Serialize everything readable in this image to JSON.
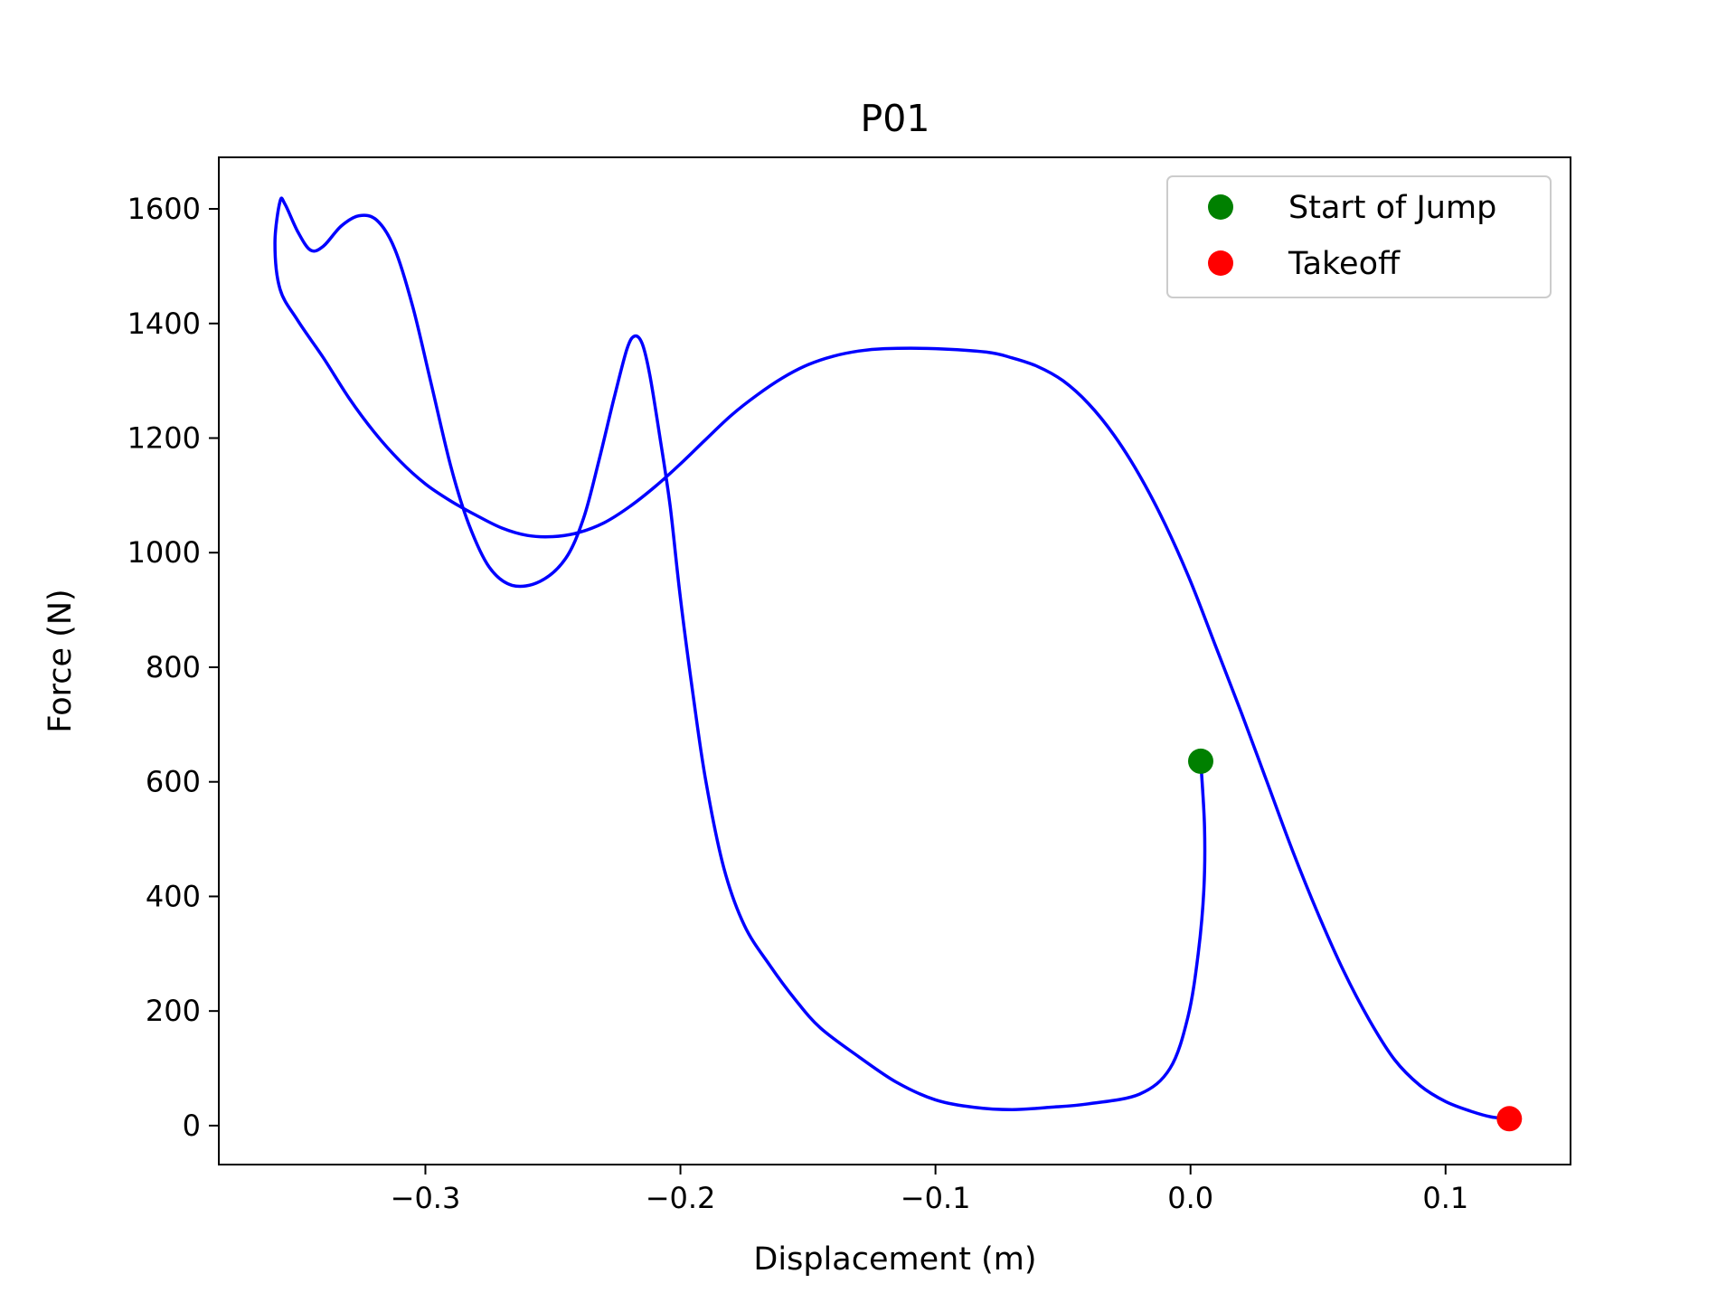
{
  "chart_data": {
    "type": "line",
    "title": "P01",
    "xlabel": "Displacement (m)",
    "ylabel": "Force (N)",
    "xlim": [
      -0.381,
      0.149
    ],
    "ylim": [
      -68,
      1690
    ],
    "x_ticks": [
      {
        "value": -0.3,
        "label": "−0.3"
      },
      {
        "value": -0.2,
        "label": "−0.2"
      },
      {
        "value": -0.1,
        "label": "−0.1"
      },
      {
        "value": 0.0,
        "label": "0.0"
      },
      {
        "value": 0.1,
        "label": "0.1"
      }
    ],
    "y_ticks": [
      {
        "value": 0,
        "label": "0"
      },
      {
        "value": 200,
        "label": "200"
      },
      {
        "value": 400,
        "label": "400"
      },
      {
        "value": 600,
        "label": "600"
      },
      {
        "value": 800,
        "label": "800"
      },
      {
        "value": 1000,
        "label": "1000"
      },
      {
        "value": 1200,
        "label": "1200"
      },
      {
        "value": 1400,
        "label": "1400"
      },
      {
        "value": 1600,
        "label": "1600"
      }
    ],
    "grid": false,
    "legend_position": "top-right",
    "series": [
      {
        "color": "#0000ff",
        "points": [
          [
            0.004,
            636
          ],
          [
            0.0055,
            520
          ],
          [
            0.0052,
            410
          ],
          [
            0.003,
            300
          ],
          [
            -0.001,
            190
          ],
          [
            -0.008,
            100
          ],
          [
            -0.02,
            55
          ],
          [
            -0.04,
            38
          ],
          [
            -0.055,
            32
          ],
          [
            -0.07,
            28
          ],
          [
            -0.085,
            32
          ],
          [
            -0.1,
            45
          ],
          [
            -0.115,
            75
          ],
          [
            -0.13,
            120
          ],
          [
            -0.145,
            170
          ],
          [
            -0.155,
            220
          ],
          [
            -0.165,
            280
          ],
          [
            -0.175,
            350
          ],
          [
            -0.183,
            450
          ],
          [
            -0.19,
            600
          ],
          [
            -0.195,
            750
          ],
          [
            -0.2,
            920
          ],
          [
            -0.204,
            1080
          ],
          [
            -0.208,
            1200
          ],
          [
            -0.212,
            1310
          ],
          [
            -0.215,
            1365
          ],
          [
            -0.218,
            1378
          ],
          [
            -0.221,
            1355
          ],
          [
            -0.226,
            1270
          ],
          [
            -0.232,
            1160
          ],
          [
            -0.238,
            1060
          ],
          [
            -0.245,
            990
          ],
          [
            -0.255,
            950
          ],
          [
            -0.266,
            943
          ],
          [
            -0.275,
            975
          ],
          [
            -0.283,
            1050
          ],
          [
            -0.29,
            1150
          ],
          [
            -0.298,
            1300
          ],
          [
            -0.305,
            1430
          ],
          [
            -0.312,
            1530
          ],
          [
            -0.319,
            1580
          ],
          [
            -0.326,
            1588
          ],
          [
            -0.333,
            1570
          ],
          [
            -0.34,
            1535
          ],
          [
            -0.345,
            1528
          ],
          [
            -0.35,
            1560
          ],
          [
            -0.355,
            1608
          ],
          [
            -0.357,
            1613
          ],
          [
            -0.359,
            1540
          ],
          [
            -0.357,
            1460
          ],
          [
            -0.35,
            1405
          ],
          [
            -0.34,
            1340
          ],
          [
            -0.33,
            1270
          ],
          [
            -0.32,
            1210
          ],
          [
            -0.31,
            1160
          ],
          [
            -0.3,
            1120
          ],
          [
            -0.29,
            1090
          ],
          [
            -0.28,
            1065
          ],
          [
            -0.27,
            1043
          ],
          [
            -0.26,
            1030
          ],
          [
            -0.25,
            1028
          ],
          [
            -0.24,
            1035
          ],
          [
            -0.23,
            1052
          ],
          [
            -0.22,
            1080
          ],
          [
            -0.21,
            1115
          ],
          [
            -0.2,
            1155
          ],
          [
            -0.19,
            1198
          ],
          [
            -0.18,
            1240
          ],
          [
            -0.17,
            1275
          ],
          [
            -0.16,
            1305
          ],
          [
            -0.15,
            1328
          ],
          [
            -0.14,
            1343
          ],
          [
            -0.13,
            1352
          ],
          [
            -0.12,
            1356
          ],
          [
            -0.1,
            1356
          ],
          [
            -0.08,
            1350
          ],
          [
            -0.07,
            1340
          ],
          [
            -0.06,
            1325
          ],
          [
            -0.05,
            1300
          ],
          [
            -0.04,
            1260
          ],
          [
            -0.03,
            1205
          ],
          [
            -0.02,
            1135
          ],
          [
            -0.01,
            1050
          ],
          [
            0.0,
            950
          ],
          [
            0.01,
            835
          ],
          [
            0.02,
            720
          ],
          [
            0.03,
            600
          ],
          [
            0.04,
            480
          ],
          [
            0.05,
            370
          ],
          [
            0.06,
            270
          ],
          [
            0.07,
            185
          ],
          [
            0.08,
            115
          ],
          [
            0.09,
            70
          ],
          [
            0.1,
            42
          ],
          [
            0.11,
            25
          ],
          [
            0.118,
            15
          ],
          [
            0.125,
            12
          ]
        ]
      }
    ],
    "markers": [
      {
        "name": "Start of Jump",
        "x": 0.004,
        "y": 636,
        "color": "#008000"
      },
      {
        "name": "Takeoff",
        "x": 0.125,
        "y": 12,
        "color": "#ff0000"
      }
    ]
  }
}
